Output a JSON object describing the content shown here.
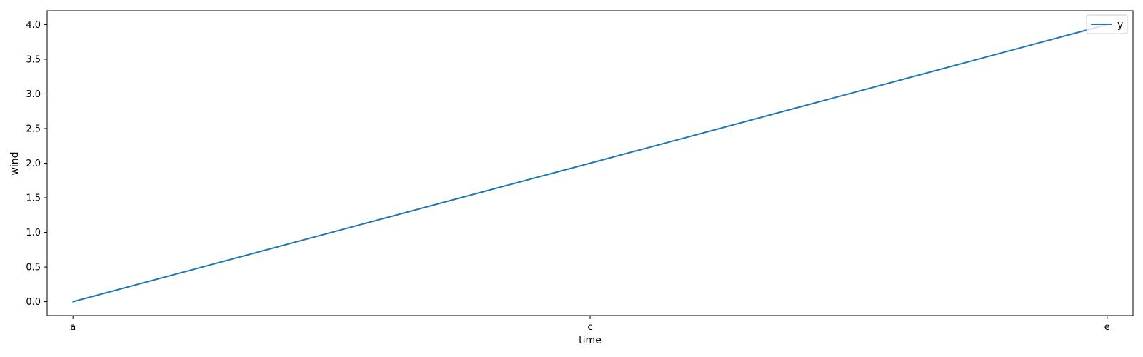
{
  "chart_data": {
    "type": "line",
    "categories": [
      "a",
      "c",
      "e"
    ],
    "x": [
      0,
      1,
      2,
      3,
      4
    ],
    "x_tick_positions": [
      0,
      2,
      4
    ],
    "series": [
      {
        "name": "y",
        "values": [
          0,
          1,
          2,
          3,
          4
        ],
        "color": "#1f77b4"
      }
    ],
    "xlabel": "time",
    "ylabel": "wind",
    "xlim": [
      -0.1,
      4.1
    ],
    "ylim": [
      -0.2,
      4.2
    ],
    "yticks": [
      "0.0",
      "0.5",
      "1.0",
      "1.5",
      "2.0",
      "2.5",
      "3.0",
      "3.5",
      "4.0"
    ],
    "ytick_values": [
      0,
      0.5,
      1.0,
      1.5,
      2.0,
      2.5,
      3.0,
      3.5,
      4.0
    ],
    "grid": false,
    "legend_position": "top-right"
  }
}
